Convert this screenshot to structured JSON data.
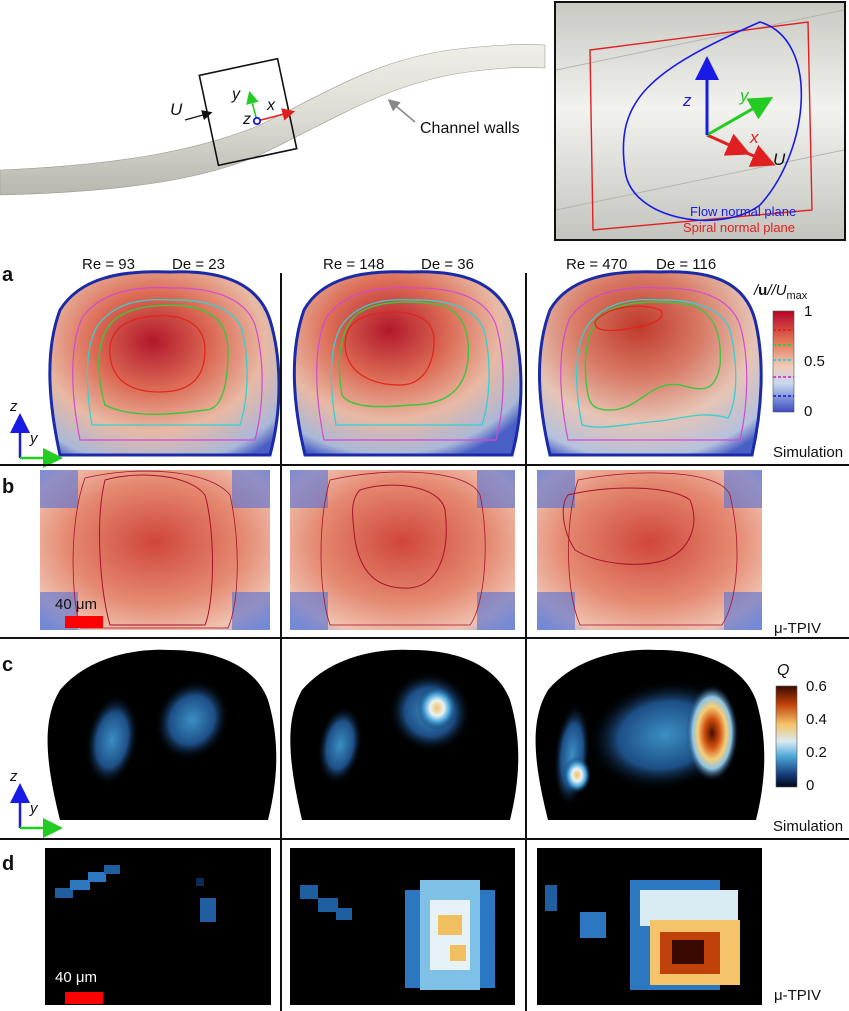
{
  "top": {
    "flow_label": "U",
    "channel_walls_label": "Channel walls",
    "axis_x": "x",
    "axis_y": "y",
    "axis_z": "z",
    "inset": {
      "axis_x": "x",
      "axis_y": "y",
      "axis_z": "z",
      "flow_label": "U",
      "flow_plane_label": "Flow normal plane",
      "spiral_plane_label": "Spiral normal plane"
    }
  },
  "panels": {
    "a": {
      "label": "a",
      "caption": "Simulation"
    },
    "b": {
      "label": "b",
      "caption": "μ-TPIV",
      "scale": "40 μm"
    },
    "c": {
      "label": "c",
      "caption": "Simulation"
    },
    "d": {
      "label": "d",
      "caption": "μ-TPIV",
      "scale": "40 μm"
    }
  },
  "columns": [
    {
      "re": "Re = 93",
      "de": "De = 23"
    },
    {
      "re": "Re = 148",
      "de": "De = 36"
    },
    {
      "re": "Re = 470",
      "de": "De = 116"
    }
  ],
  "colorbar_a": {
    "title_parts": [
      "/",
      "u",
      "/",
      "/U",
      "max"
    ],
    "ticks": [
      "1",
      "0.5",
      "0"
    ],
    "contour_colors": [
      "#e2231a",
      "#3cc63c",
      "#35d0d0",
      "#d04ad0",
      "#1f3fd8"
    ]
  },
  "colorbar_c": {
    "title": "Q",
    "ticks": [
      "0.6",
      "0.4",
      "0.2",
      "0"
    ]
  },
  "axes_small": {
    "z": "z",
    "y": "y"
  },
  "colors": {
    "cool": "#3a4cc0",
    "warm": "#b40426",
    "plane_blue": "#1a1ae6",
    "plane_red": "#e02020",
    "scale_bar": "#ff0000"
  }
}
